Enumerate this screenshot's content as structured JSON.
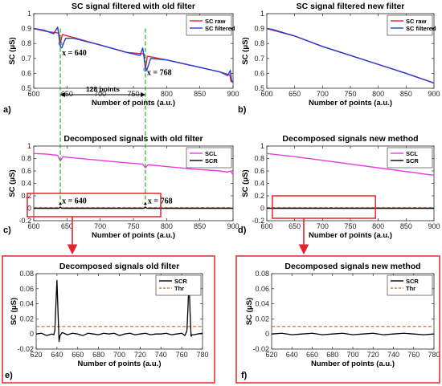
{
  "colors": {
    "raw": "#e8232a",
    "filtered": "#1f3fd6",
    "scl": "#e83ce0",
    "scr": "#000000",
    "thr": "#e8742a",
    "guide": "#2bb52b",
    "box": "#e3252b"
  },
  "panel_labels": [
    "a)",
    "b)",
    "c)",
    "d)",
    "e)",
    "f)"
  ],
  "annotations": {
    "x640": "x = 640",
    "x768": "x = 768",
    "span": "128 points"
  },
  "chart_data": [
    {
      "id": "a",
      "type": "line",
      "title": "SC signal filtered with old filter",
      "xlabel": "Number of points (a.u.)",
      "ylabel": "SC (μS)",
      "xlim": [
        600,
        900
      ],
      "ylim": [
        0.5,
        1.0
      ],
      "xticks": [
        "600",
        "650",
        "700",
        "750",
        "800",
        "850",
        "900"
      ],
      "yticks": [
        "0.5",
        "0.6",
        "0.7",
        "0.8",
        "0.9",
        "1"
      ],
      "legend": "top-right",
      "series": [
        {
          "name": "SC raw",
          "key": "raw",
          "x": [
            600,
            620,
            638,
            640,
            643,
            660,
            700,
            740,
            766,
            768,
            771,
            800,
            840,
            880,
            895,
            897,
            900
          ],
          "y": [
            0.9,
            0.88,
            0.87,
            0.8,
            0.86,
            0.84,
            0.79,
            0.74,
            0.73,
            0.625,
            0.715,
            0.69,
            0.65,
            0.61,
            0.59,
            0.545,
            0.55
          ]
        },
        {
          "name": "SC filtered",
          "key": "filtered",
          "x": [
            600,
            615,
            630,
            636,
            640,
            642,
            648,
            660,
            700,
            740,
            760,
            764,
            768,
            770,
            776,
            800,
            840,
            880,
            892,
            896,
            898,
            900
          ],
          "y": [
            0.9,
            0.89,
            0.865,
            0.91,
            0.78,
            0.77,
            0.835,
            0.835,
            0.79,
            0.74,
            0.72,
            0.77,
            0.64,
            0.62,
            0.7,
            0.69,
            0.65,
            0.61,
            0.585,
            0.62,
            0.545,
            0.54
          ]
        }
      ]
    },
    {
      "id": "b",
      "type": "line",
      "title": "SC signal filtered new filter",
      "xlabel": "Number of points (a.u.)",
      "ylabel": "SC (μS)",
      "xlim": [
        600,
        900
      ],
      "ylim": [
        0.5,
        1.0
      ],
      "xticks": [
        "600",
        "650",
        "700",
        "750",
        "800",
        "850",
        "900"
      ],
      "yticks": [
        "0.5",
        "0.6",
        "0.7",
        "0.8",
        "0.9",
        "1"
      ],
      "legend": "top-right",
      "series": [
        {
          "name": "SC raw",
          "key": "raw",
          "x": [
            600,
            650,
            700,
            750,
            800,
            850,
            900
          ],
          "y": [
            0.9,
            0.85,
            0.78,
            0.72,
            0.66,
            0.6,
            0.535
          ]
        },
        {
          "name": "SC filtered",
          "key": "filtered",
          "x": [
            600,
            610,
            650,
            700,
            750,
            800,
            850,
            900
          ],
          "y": [
            0.9,
            0.895,
            0.85,
            0.78,
            0.72,
            0.66,
            0.6,
            0.535
          ]
        }
      ]
    },
    {
      "id": "c",
      "type": "line",
      "title": "Decomposed signals with old filter",
      "xlabel": "Number of points (a.u.)",
      "ylabel": "SC (μS)",
      "xlim": [
        600,
        900
      ],
      "ylim": [
        -0.2,
        1.0
      ],
      "xticks": [
        "600",
        "650",
        "700",
        "750",
        "800",
        "850",
        "900"
      ],
      "yticks": [
        "-0.2",
        "0",
        "0.2",
        "0.4",
        "0.6",
        "0.8",
        "1"
      ],
      "legend": "top-right",
      "series": [
        {
          "name": "SCL",
          "key": "scl",
          "x": [
            600,
            620,
            636,
            640,
            644,
            650,
            700,
            740,
            764,
            768,
            772,
            800,
            840,
            880,
            892,
            896,
            900
          ],
          "y": [
            0.88,
            0.87,
            0.85,
            0.76,
            0.83,
            0.82,
            0.77,
            0.73,
            0.71,
            0.65,
            0.7,
            0.67,
            0.63,
            0.6,
            0.58,
            0.6,
            0.54
          ]
        },
        {
          "name": "SCR",
          "key": "scr",
          "x": [
            600,
            638,
            640,
            642,
            700,
            766,
            768,
            770,
            900
          ],
          "y": [
            0.0,
            0.0,
            0.02,
            0.0,
            0.0,
            0.0,
            0.02,
            0.0,
            0.0
          ]
        },
        {
          "name": "Thr",
          "key": "thr",
          "dashed": true,
          "inLegend": false,
          "x": [
            600,
            900
          ],
          "y": [
            0.01,
            0.01
          ]
        }
      ]
    },
    {
      "id": "d",
      "type": "line",
      "title": "Decomposed signals new method",
      "xlabel": "Number of points (a.u.)",
      "ylabel": "SC (μS)",
      "xlim": [
        600,
        900
      ],
      "ylim": [
        -0.2,
        1.0
      ],
      "xticks": [
        "600",
        "650",
        "700",
        "750",
        "800",
        "850",
        "900"
      ],
      "yticks": [
        "-0.2",
        "0",
        "0.2",
        "0.4",
        "0.6",
        "0.8",
        "1"
      ],
      "legend": "top-right",
      "series": [
        {
          "name": "SCL",
          "key": "scl",
          "x": [
            600,
            650,
            700,
            750,
            800,
            850,
            900
          ],
          "y": [
            0.88,
            0.83,
            0.77,
            0.71,
            0.65,
            0.59,
            0.53
          ]
        },
        {
          "name": "SCR",
          "key": "scr",
          "x": [
            600,
            900
          ],
          "y": [
            0.0,
            0.0
          ]
        },
        {
          "name": "Thr",
          "key": "thr",
          "dashed": true,
          "inLegend": false,
          "x": [
            600,
            900
          ],
          "y": [
            0.01,
            0.01
          ]
        }
      ]
    },
    {
      "id": "e",
      "type": "line",
      "title": "Decomposed signals old filter",
      "xlabel": "Number of points (a.u.)",
      "ylabel": "SC (μS)",
      "xlim": [
        620,
        780
      ],
      "ylim": [
        -0.02,
        0.08
      ],
      "xticks": [
        "620",
        "640",
        "660",
        "680",
        "700",
        "720",
        "740",
        "760",
        "780"
      ],
      "yticks": [
        "-0.02",
        "0",
        "0.02",
        "0.04",
        "0.06",
        "0.08"
      ],
      "legend": "top-right",
      "series": [
        {
          "name": "SCR",
          "key": "scr",
          "x": [
            620,
            625,
            630,
            635,
            637,
            638,
            639,
            640,
            641,
            642,
            643,
            645,
            650,
            655,
            660,
            665,
            670,
            675,
            680,
            685,
            690,
            695,
            700,
            705,
            710,
            715,
            720,
            725,
            730,
            735,
            740,
            745,
            750,
            755,
            760,
            763,
            765,
            766,
            767,
            768,
            769,
            770,
            772,
            775,
            780
          ],
          "y": [
            0.0,
            0.001,
            -0.002,
            0.0,
            -0.001,
            0.005,
            0.04,
            0.071,
            0.03,
            -0.01,
            -0.002,
            0.002,
            -0.001,
            0.001,
            0.0,
            -0.002,
            0.001,
            0.0,
            -0.001,
            0.001,
            0.0,
            0.001,
            -0.002,
            0.0,
            0.001,
            -0.001,
            0.0,
            0.001,
            -0.001,
            0.0,
            0.0,
            0.001,
            -0.001,
            0.0,
            0.001,
            -0.002,
            0.004,
            0.035,
            0.073,
            0.03,
            -0.003,
            -0.001,
            -0.001,
            0.0,
            0.001
          ]
        },
        {
          "name": "Thr",
          "key": "thr",
          "dashed": true,
          "x": [
            620,
            780
          ],
          "y": [
            0.01,
            0.01
          ]
        }
      ]
    },
    {
      "id": "f",
      "type": "line",
      "title": "Decomposed signals new method",
      "xlabel": "Number of points (a.u.)",
      "ylabel": "SC (μS)",
      "xlim": [
        620,
        780
      ],
      "ylim": [
        -0.02,
        0.08
      ],
      "xticks": [
        "620",
        "640",
        "660",
        "680",
        "700",
        "720",
        "740",
        "760",
        "780"
      ],
      "yticks": [
        "-0.02",
        "0",
        "0.02",
        "0.04",
        "0.06",
        "0.08"
      ],
      "legend": "top-right",
      "series": [
        {
          "name": "SCR",
          "key": "scr",
          "x": [
            620,
            630,
            640,
            650,
            660,
            670,
            680,
            690,
            700,
            710,
            720,
            730,
            740,
            750,
            760,
            770,
            780
          ],
          "y": [
            0.0,
            0.001,
            -0.001,
            0.0,
            0.001,
            -0.001,
            0.0,
            0.001,
            -0.001,
            0.0,
            0.001,
            -0.001,
            0.0,
            0.001,
            0.0,
            -0.001,
            0.0
          ]
        },
        {
          "name": "Thr",
          "key": "thr",
          "dashed": true,
          "x": [
            620,
            780
          ],
          "y": [
            0.01,
            0.01
          ]
        }
      ]
    }
  ]
}
